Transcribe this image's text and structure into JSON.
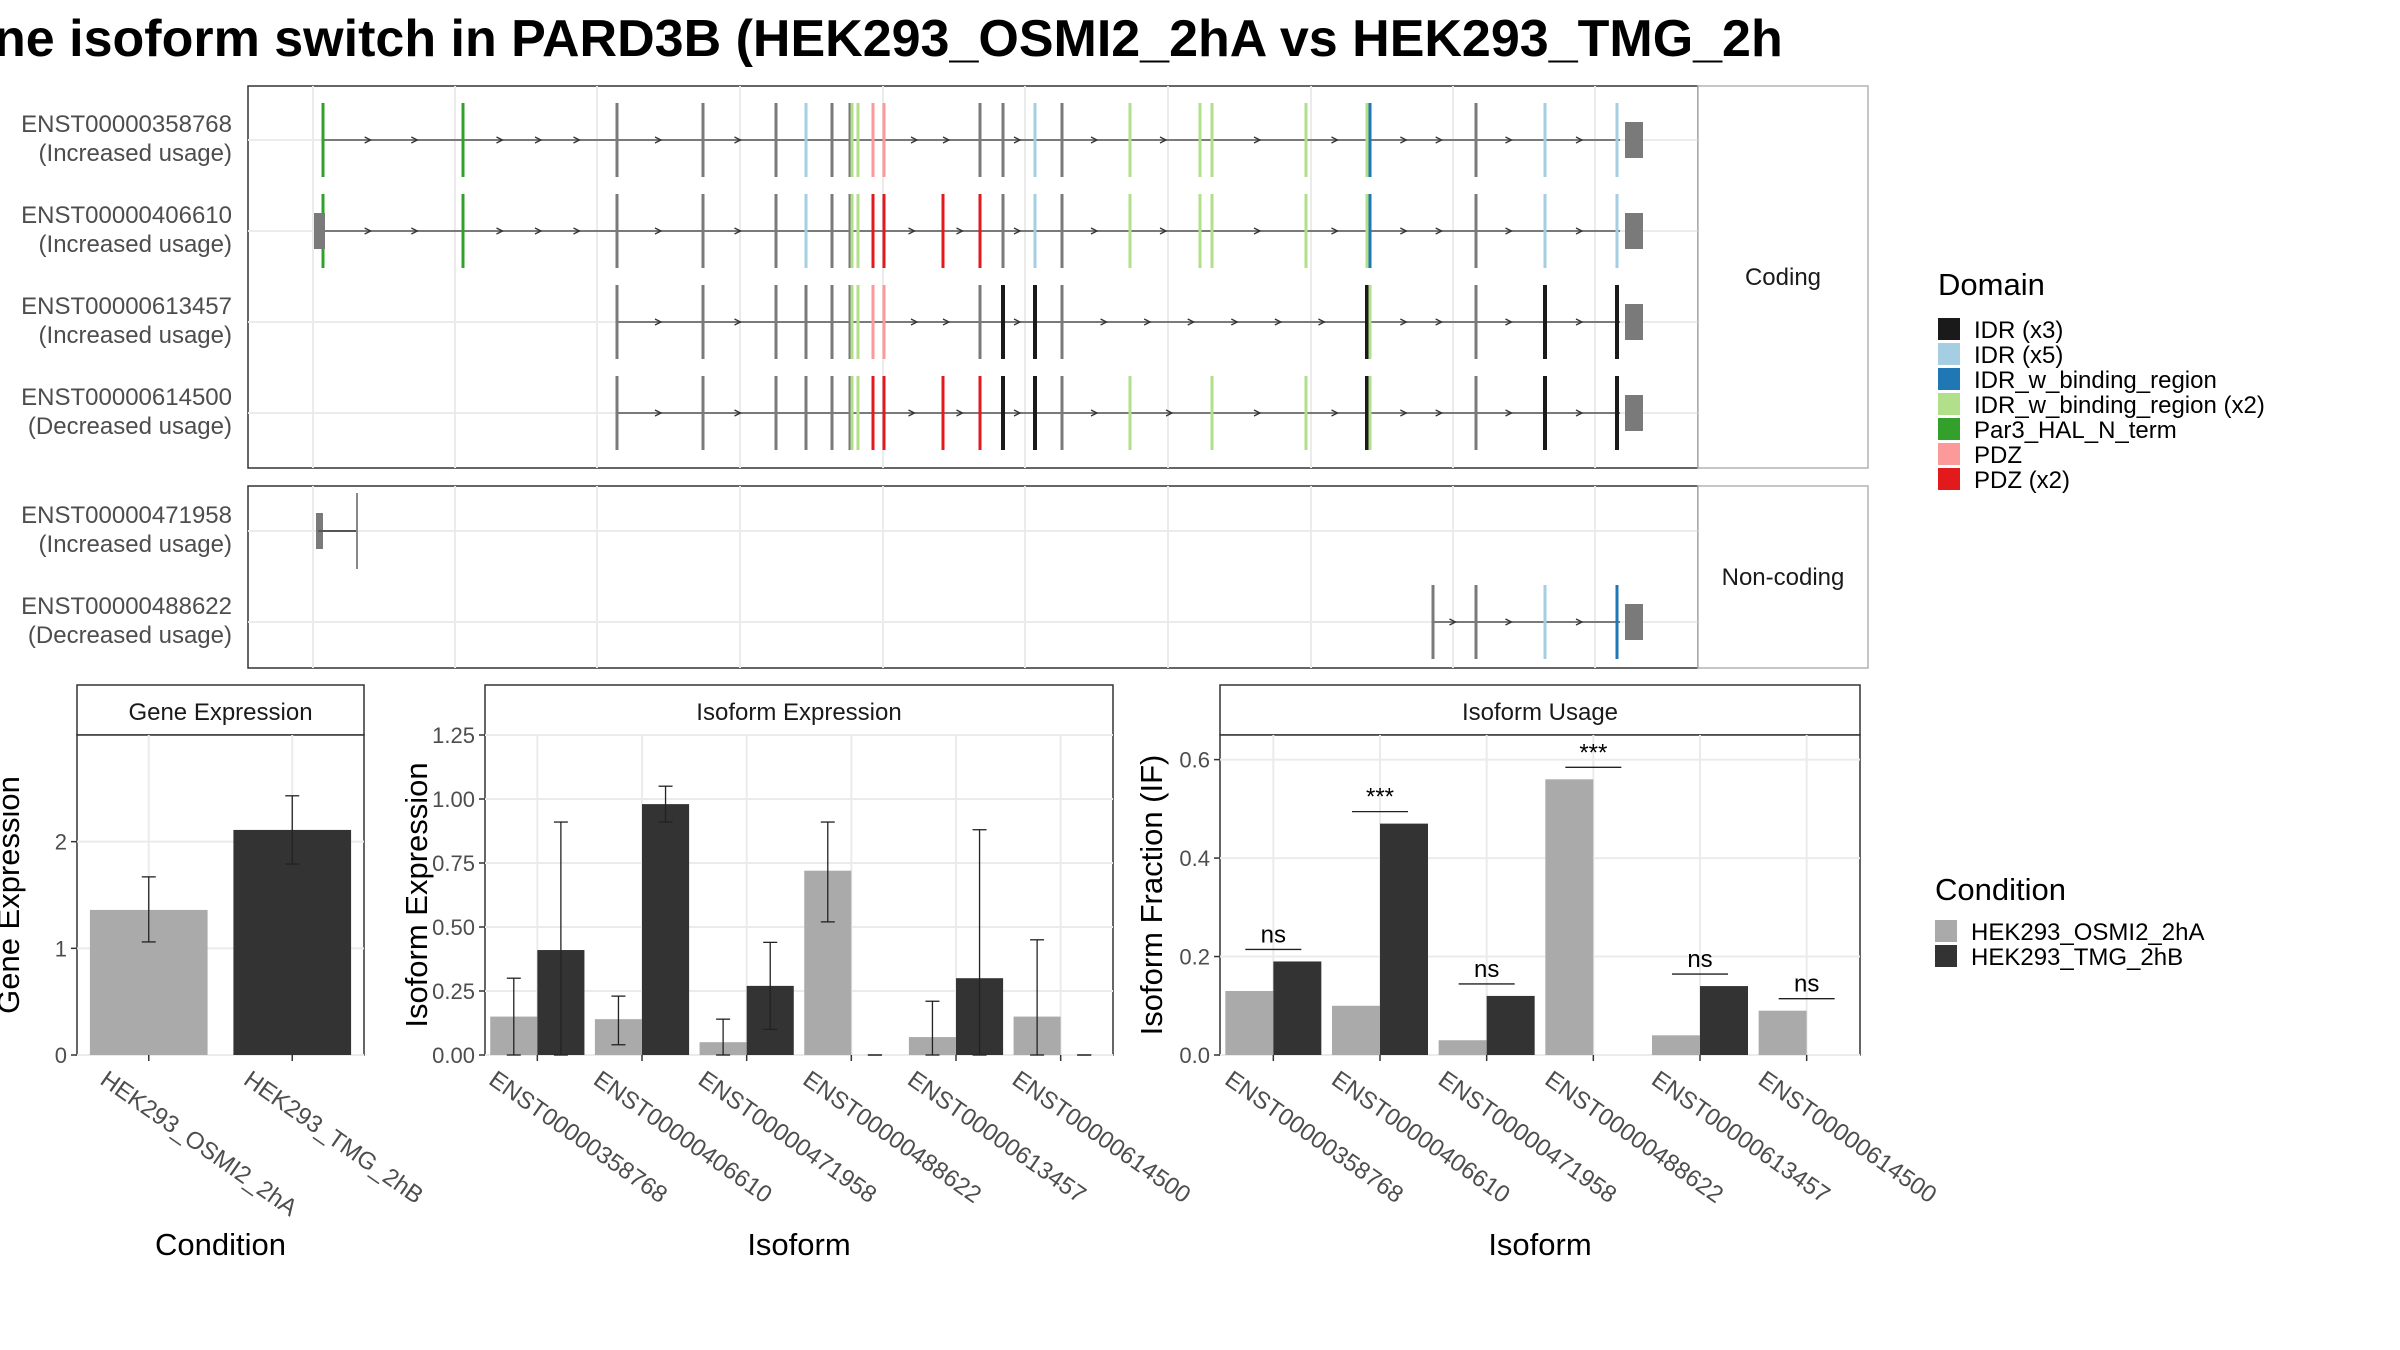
{
  "title": "ne isoform switch in PARD3B (HEK293_OSMI2_2hA vs HEK293_TMG_2h",
  "structure": {
    "coding_strip": "Coding",
    "noncoding_strip": "Non-coding",
    "isoforms": [
      {
        "id": "ENST00000358768",
        "usage": "(Increased usage)",
        "group": "coding"
      },
      {
        "id": "ENST00000406610",
        "usage": "(Increased usage)",
        "group": "coding"
      },
      {
        "id": "ENST00000613457",
        "usage": "(Increased usage)",
        "group": "coding"
      },
      {
        "id": "ENST00000614500",
        "usage": "(Decreased usage)",
        "group": "coding"
      },
      {
        "id": "ENST00000471958",
        "usage": "(Increased usage)",
        "group": "noncoding"
      },
      {
        "id": "ENST00000488622",
        "usage": "(Decreased usage)",
        "group": "noncoding"
      }
    ]
  },
  "legends": {
    "domain": {
      "title": "Domain",
      "items": [
        {
          "label": "IDR (x3)",
          "color": "#1a1a1a"
        },
        {
          "label": "IDR (x5)",
          "color": "#a6cee3"
        },
        {
          "label": "IDR_w_binding_region",
          "color": "#1f78b4"
        },
        {
          "label": "IDR_w_binding_region (x2)",
          "color": "#b2df8a"
        },
        {
          "label": "Par3_HAL_N_term",
          "color": "#33a02c"
        },
        {
          "label": "PDZ",
          "color": "#fb9a99"
        },
        {
          "label": "PDZ (x2)",
          "color": "#e31a1c"
        }
      ]
    },
    "condition": {
      "title": "Condition",
      "items": [
        {
          "label": "HEK293_OSMI2_2hA",
          "color": "#aaaaaa"
        },
        {
          "label": "HEK293_TMG_2hB",
          "color": "#333333"
        }
      ]
    }
  },
  "chart_data": [
    {
      "type": "bar",
      "title": "Gene Expression",
      "xlabel": "Condition",
      "ylabel": "Gene Expression",
      "ylim": [
        0,
        3
      ],
      "yticks": [
        0,
        1,
        2
      ],
      "categories": [
        "HEK293_OSMI2_2hA",
        "HEK293_TMG_2hB"
      ],
      "values": [
        1.36,
        2.11
      ],
      "errors": [
        [
          1.06,
          1.67
        ],
        [
          1.79,
          2.43
        ]
      ],
      "colors": [
        "#aaaaaa",
        "#333333"
      ]
    },
    {
      "type": "bar",
      "title": "Isoform Expression",
      "xlabel": "Isoform",
      "ylabel": "Isoform Expression",
      "ylim": [
        0,
        1.25
      ],
      "yticks": [
        "0.00",
        "0.25",
        "0.50",
        "0.75",
        "1.00",
        "1.25"
      ],
      "categories": [
        "ENST00000358768",
        "ENST00000406610",
        "ENST00000471958",
        "ENST00000488622",
        "ENST00000613457",
        "ENST00000614500"
      ],
      "series": [
        {
          "name": "HEK293_OSMI2_2hA",
          "values": [
            0.15,
            0.14,
            0.05,
            0.72,
            0.07,
            0.15
          ],
          "errors": [
            [
              0.0,
              0.3
            ],
            [
              0.04,
              0.23
            ],
            [
              0.0,
              0.14
            ],
            [
              0.52,
              0.91
            ],
            [
              0.0,
              0.21
            ],
            [
              0.0,
              0.45
            ]
          ]
        },
        {
          "name": "HEK293_TMG_2hB",
          "values": [
            0.41,
            0.98,
            0.27,
            0.0,
            0.3,
            0.0
          ],
          "errors": [
            [
              0.0,
              0.91
            ],
            [
              0.91,
              1.05
            ],
            [
              0.1,
              0.44
            ],
            [
              0.0,
              0.0
            ],
            [
              0.0,
              0.88
            ],
            [
              0.0,
              0.0
            ]
          ]
        }
      ]
    },
    {
      "type": "bar",
      "title": "Isoform Usage",
      "xlabel": "Isoform",
      "ylabel": "Isoform Fraction (IF)",
      "ylim": [
        0,
        0.65
      ],
      "yticks": [
        "0.0",
        "0.2",
        "0.4",
        "0.6"
      ],
      "categories": [
        "ENST00000358768",
        "ENST00000406610",
        "ENST00000471958",
        "ENST00000488622",
        "ENST00000613457",
        "ENST00000614500"
      ],
      "series": [
        {
          "name": "HEK293_OSMI2_2hA",
          "values": [
            0.13,
            0.1,
            0.03,
            0.56,
            0.04,
            0.09
          ]
        },
        {
          "name": "HEK293_TMG_2hB",
          "values": [
            0.19,
            0.47,
            0.12,
            0.0,
            0.14,
            0.0
          ]
        }
      ],
      "significance": [
        "ns",
        "***",
        "ns",
        "***",
        "ns",
        "ns"
      ]
    }
  ]
}
